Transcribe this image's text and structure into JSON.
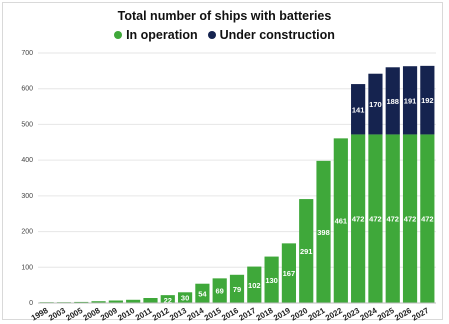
{
  "chart_data": {
    "type": "bar",
    "stacked": true,
    "title": "Total number of ships with batteries",
    "categories": [
      "1998",
      "2003",
      "2005",
      "2008",
      "2009",
      "2010",
      "2011",
      "2012",
      "2013",
      "2014",
      "2015",
      "2016",
      "2017",
      "2018",
      "2019",
      "2020",
      "2021",
      "2022",
      "2023",
      "2024",
      "2025",
      "2026",
      "2027"
    ],
    "series": [
      {
        "name": "In operation",
        "color": "#3fa83a",
        "values": [
          1,
          2,
          3,
          5,
          7,
          9,
          14,
          22,
          30,
          54,
          69,
          79,
          102,
          130,
          167,
          291,
          398,
          461,
          472,
          472,
          472,
          472,
          472
        ],
        "labels": [
          null,
          null,
          null,
          null,
          null,
          null,
          null,
          "22",
          "30",
          "54",
          "69",
          "79",
          "102",
          "130",
          "167",
          "291",
          "398",
          "461",
          "472",
          "472",
          "472",
          "472",
          "472"
        ]
      },
      {
        "name": "Under construction",
        "color": "#15234f",
        "values": [
          0,
          0,
          0,
          0,
          0,
          0,
          0,
          0,
          0,
          0,
          0,
          0,
          0,
          0,
          0,
          0,
          0,
          0,
          141,
          170,
          188,
          191,
          192
        ],
        "labels": [
          null,
          null,
          null,
          null,
          null,
          null,
          null,
          null,
          null,
          null,
          null,
          null,
          null,
          null,
          null,
          null,
          null,
          null,
          "141",
          "170",
          "188",
          "191",
          "192"
        ]
      }
    ],
    "xlabel": "",
    "ylabel": "",
    "ylim": [
      0,
      700
    ],
    "yticks": [
      "0",
      "100",
      "200",
      "300",
      "400",
      "500",
      "600",
      "700"
    ],
    "grid": true,
    "legend_position": "top"
  }
}
